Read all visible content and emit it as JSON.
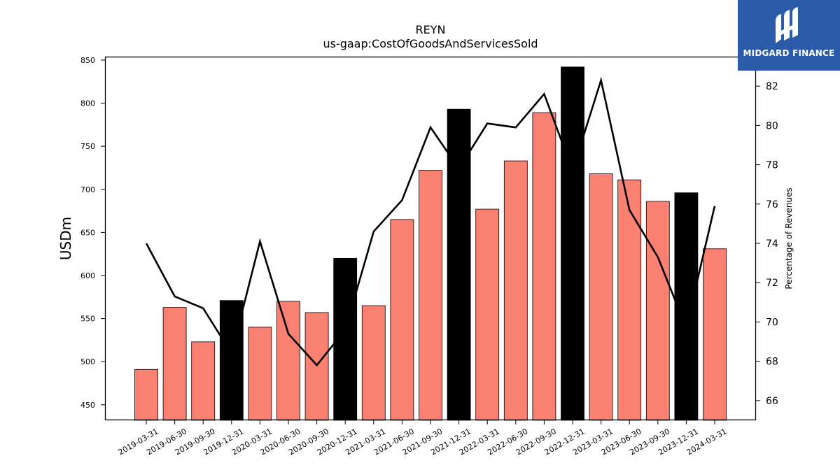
{
  "chart_data": {
    "type": "bar",
    "title": "REYN",
    "subtitle": "us-gaap:CostOfGoodsAndServicesSold",
    "ylabel": "USDm",
    "y2label": "Percentage of Revenues",
    "categories": [
      "2019-03-31",
      "2019-06-30",
      "2019-09-30",
      "2019-12-31",
      "2020-03-31",
      "2020-06-30",
      "2020-09-30",
      "2020-12-31",
      "2021-03-31",
      "2021-06-30",
      "2021-09-30",
      "2021-12-31",
      "2022-03-31",
      "2022-06-30",
      "2022-09-30",
      "2022-12-31",
      "2023-03-31",
      "2023-06-30",
      "2023-09-30",
      "2023-12-31",
      "2024-03-31"
    ],
    "series": [
      {
        "values": [
          491,
          563,
          523,
          571,
          540,
          570,
          557,
          620,
          565,
          665,
          722,
          793,
          677,
          733,
          789,
          842,
          718,
          711,
          686,
          696,
          631
        ],
        "highlight": [
          false,
          false,
          false,
          true,
          false,
          false,
          false,
          true,
          false,
          false,
          false,
          true,
          false,
          false,
          false,
          true,
          false,
          false,
          false,
          true,
          false
        ]
      },
      {
        "type": "line",
        "axis": "right",
        "values": [
          74.0,
          71.3,
          70.7,
          68.4,
          74.1,
          69.4,
          67.8,
          69.6,
          74.6,
          76.2,
          79.9,
          77.8,
          80.1,
          79.9,
          81.6,
          77.7,
          82.3,
          75.7,
          73.3,
          69.7,
          75.9
        ]
      }
    ],
    "ylim": [
      432,
      854
    ],
    "y2lim": [
      65.0,
      83.5
    ],
    "yticks": [
      450,
      500,
      550,
      600,
      650,
      700,
      750,
      800,
      850
    ],
    "y2ticks": [
      66,
      68,
      70,
      72,
      74,
      76,
      78,
      80,
      82
    ],
    "colors": {
      "bar": "#fa8072",
      "highlight": "#000000",
      "line": "#000000"
    },
    "grid": false
  },
  "logo": {
    "text": "MIDGARD FINANCE",
    "icon": "midgard-logo-icon",
    "background": "#2b5aa8"
  }
}
